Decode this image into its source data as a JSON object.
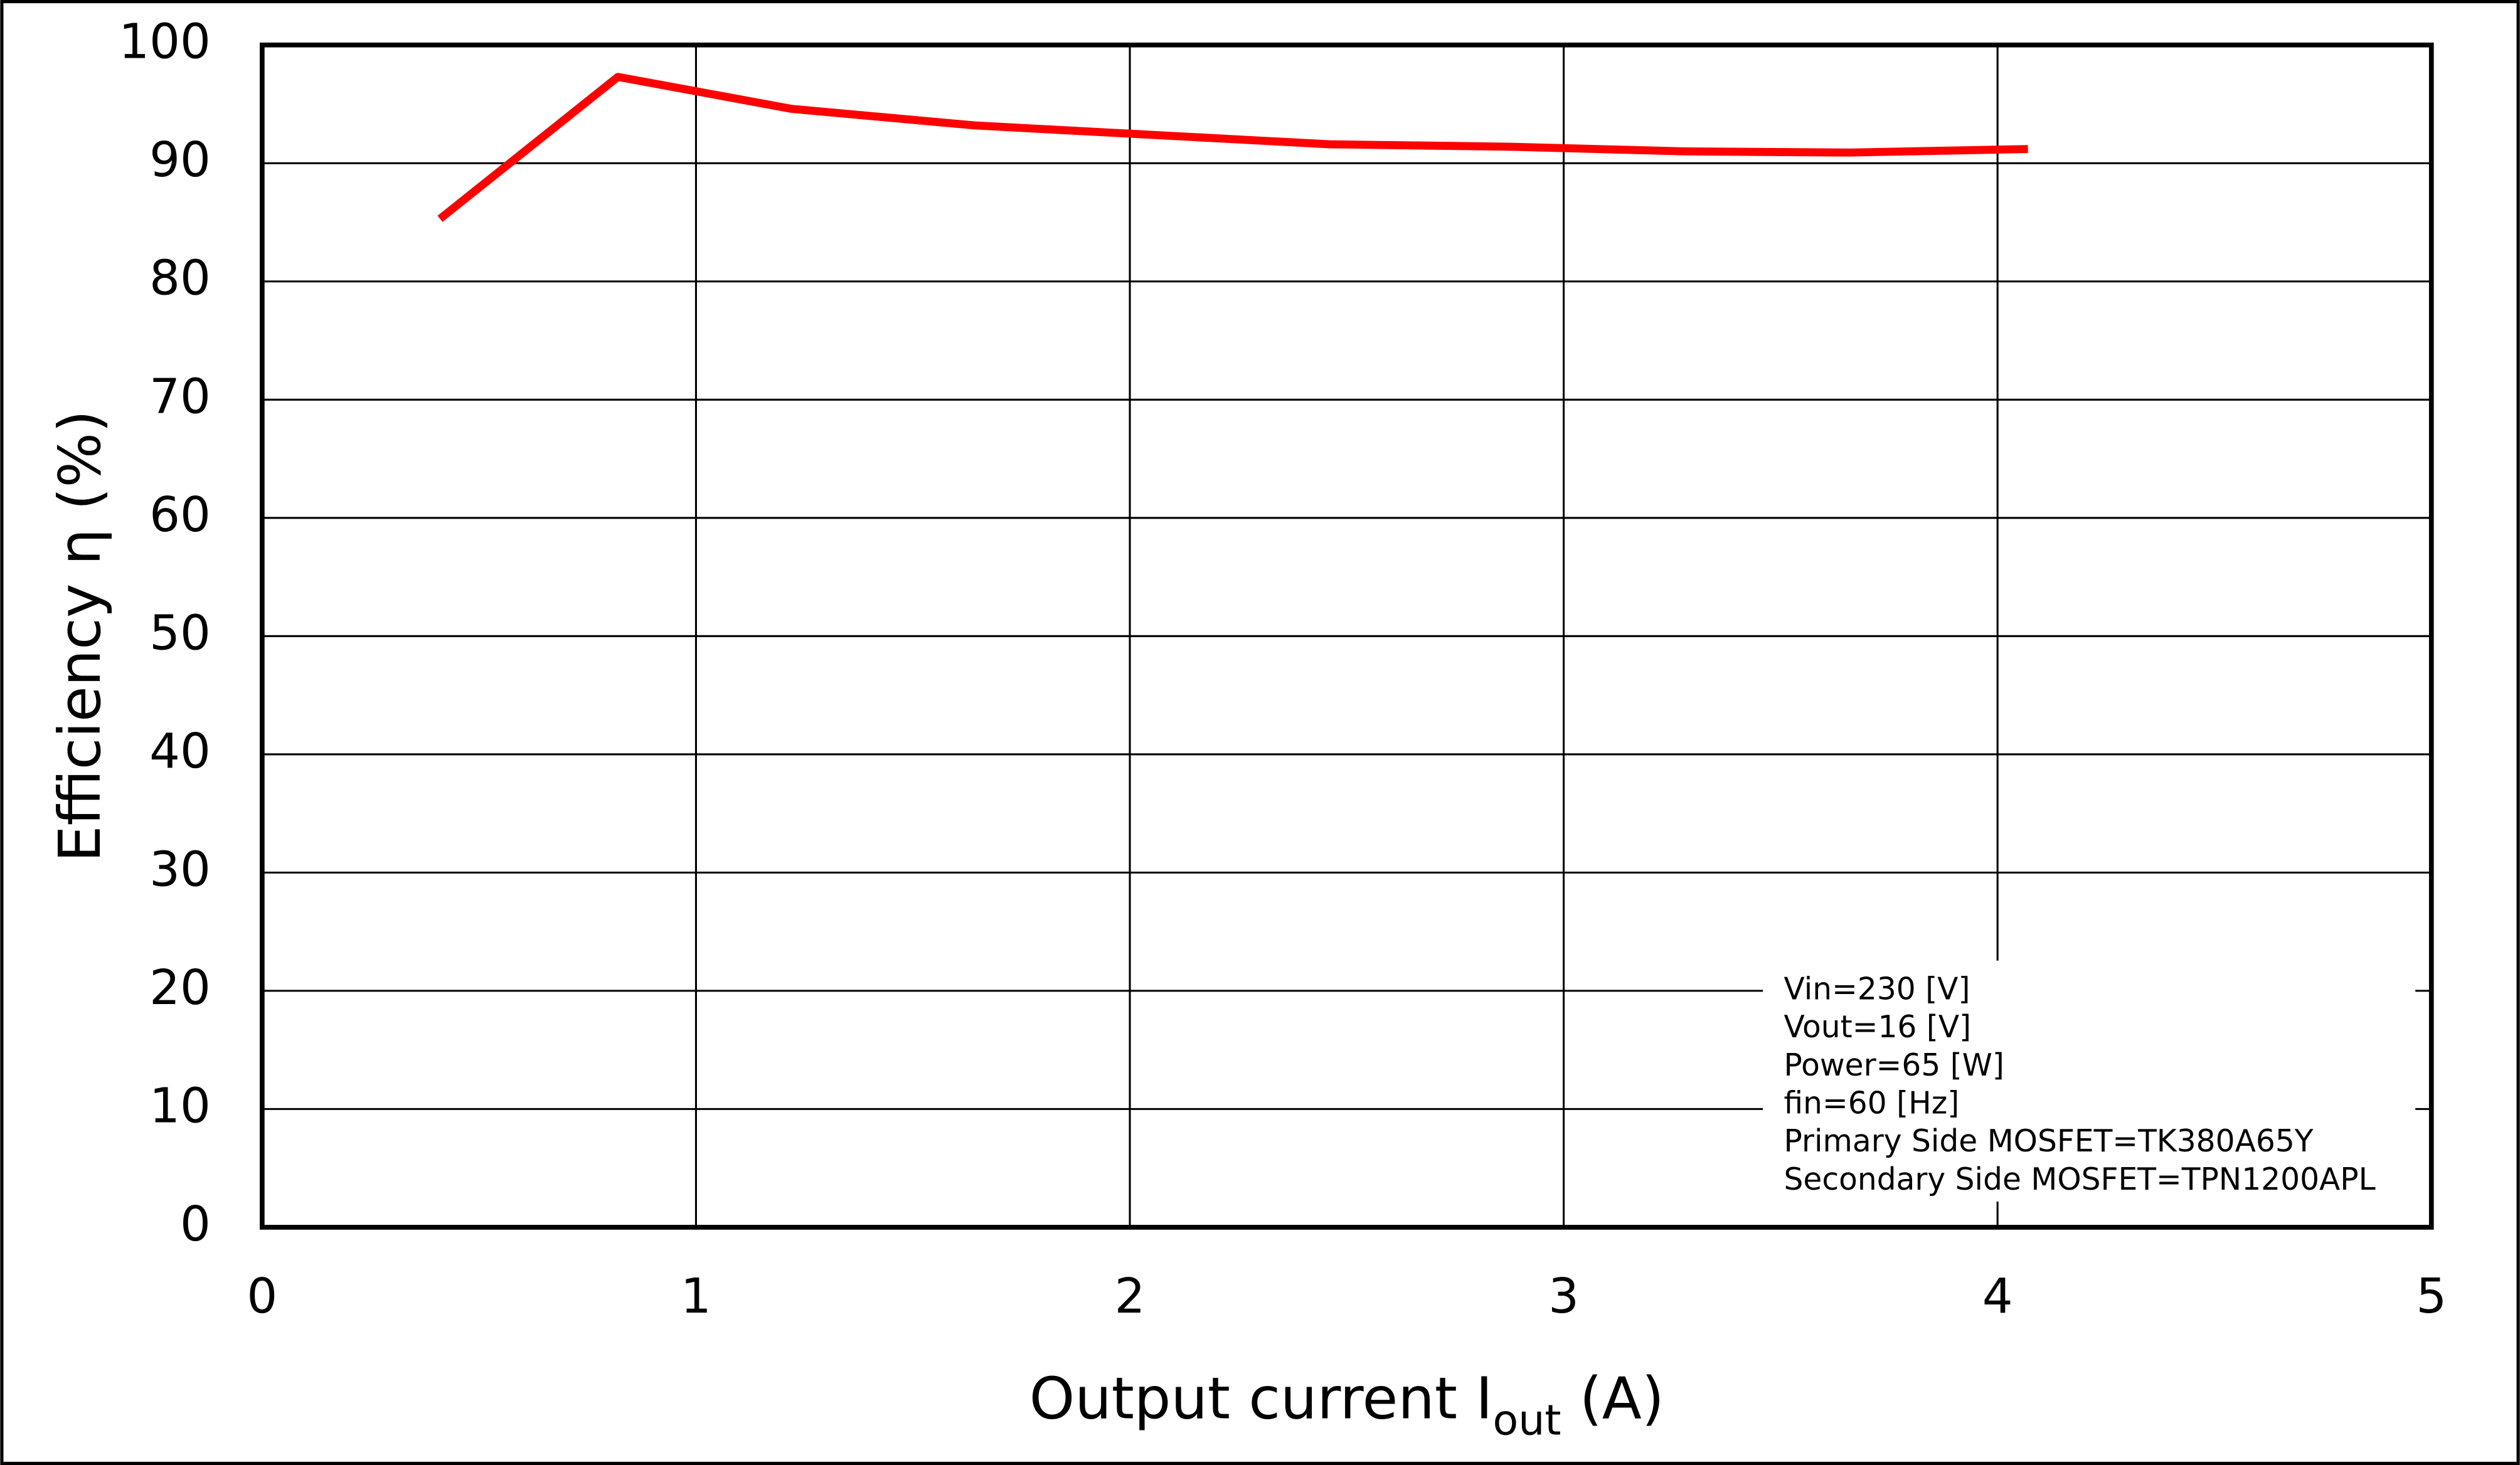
{
  "chart_data": {
    "type": "line",
    "x_label": {
      "text": "Output current  I",
      "subscript": "out",
      "suffix": " (A)"
    },
    "y_label": "Efficiency  η (%)",
    "x": [
      0.41,
      0.82,
      1.22,
      1.64,
      2.05,
      2.46,
      2.87,
      3.28,
      3.66,
      4.07
    ],
    "series": [
      {
        "color": "#ff0000",
        "values": [
          85.3,
          97.3,
          94.6,
          93.2,
          92.4,
          91.6,
          91.4,
          91.0,
          90.9,
          91.2
        ]
      }
    ],
    "xlim": [
      0,
      5
    ],
    "xticks": [
      0,
      1,
      2,
      3,
      4,
      5
    ],
    "ylim": [
      0,
      100
    ],
    "yticks": [
      0,
      10,
      20,
      30,
      40,
      50,
      60,
      70,
      80,
      90,
      100
    ],
    "grid": true,
    "annotation": [
      "Vin=230 [V]",
      "Vout=16 [V]",
      "Power=65 [W]",
      "fin=60 [Hz]",
      "Primary Side MOSFET=TK380A65Y",
      "Secondary Side MOSFET=TPN1200APL"
    ]
  }
}
